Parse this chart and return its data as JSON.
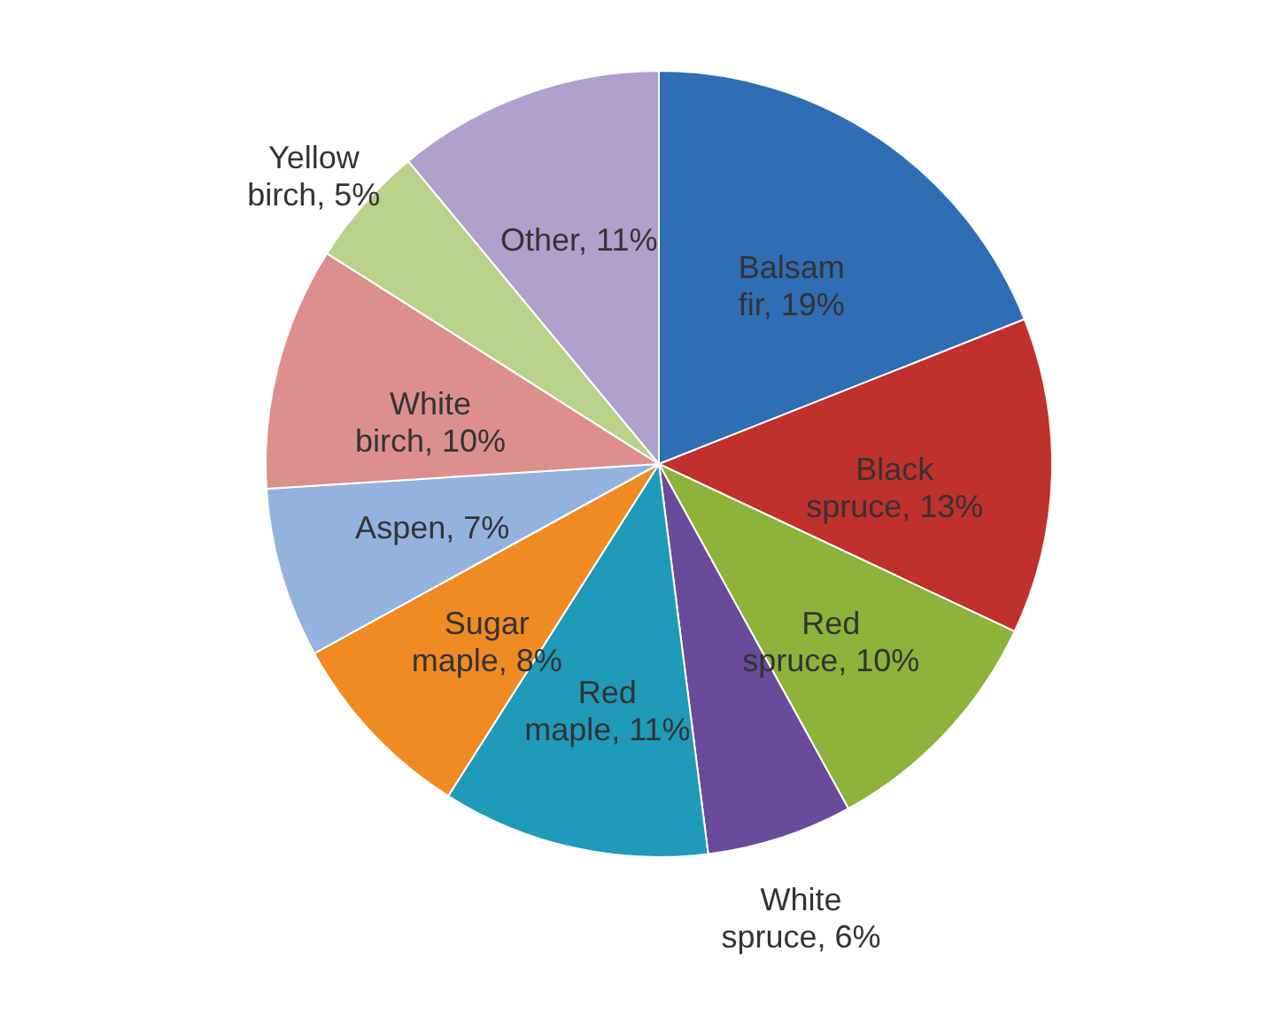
{
  "chart_data": {
    "type": "pie",
    "categories": [
      "Balsam fir",
      "Black spruce",
      "Red spruce",
      "White spruce",
      "Red maple",
      "Sugar maple",
      "Aspen",
      "White birch",
      "Yellow birch",
      "Other"
    ],
    "values": [
      19,
      13,
      10,
      6,
      11,
      8,
      7,
      10,
      5,
      11
    ],
    "colors": [
      "#2f6db5",
      "#c0302c",
      "#8db33a",
      "#6a4a9a",
      "#1f9ab8",
      "#f08a22",
      "#93b3de",
      "#dc8f8d",
      "#b8d28a",
      "#b0a0cc"
    ],
    "value_labels": [
      "19%",
      "13%",
      "10%",
      "6%",
      "11%",
      "8%",
      "7%",
      "10%",
      "5%",
      "11%"
    ]
  }
}
